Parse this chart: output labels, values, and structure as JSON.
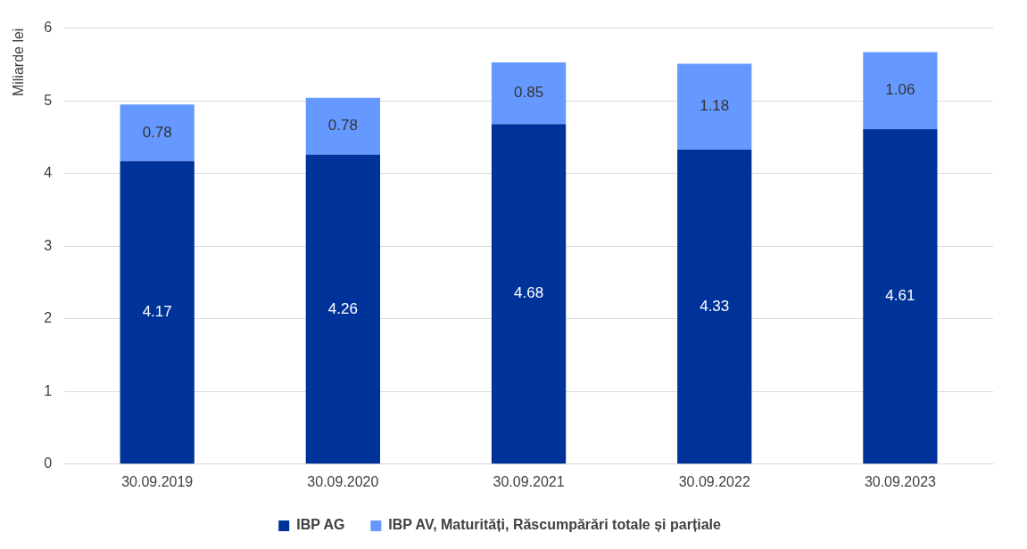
{
  "chart_data": {
    "type": "bar",
    "ylabel": "Miliarde lei",
    "categories": [
      "30.09.2019",
      "30.09.2020",
      "30.09.2021",
      "30.09.2022",
      "30.09.2023"
    ],
    "series": [
      {
        "name": "IBP AG",
        "color": "#003399",
        "values": [
          4.17,
          4.26,
          4.68,
          4.33,
          4.61
        ]
      },
      {
        "name": "IBP AV, Maturități, Răscumpărări totale și parțiale",
        "color": "#6699ff",
        "values": [
          0.78,
          0.78,
          0.85,
          1.18,
          1.06
        ]
      }
    ],
    "stacked": true,
    "ylim": [
      0,
      6
    ],
    "yticks": [
      0,
      1,
      2,
      3,
      4,
      5,
      6
    ],
    "grid": "y",
    "legend": "bottom",
    "data_labels": true
  }
}
